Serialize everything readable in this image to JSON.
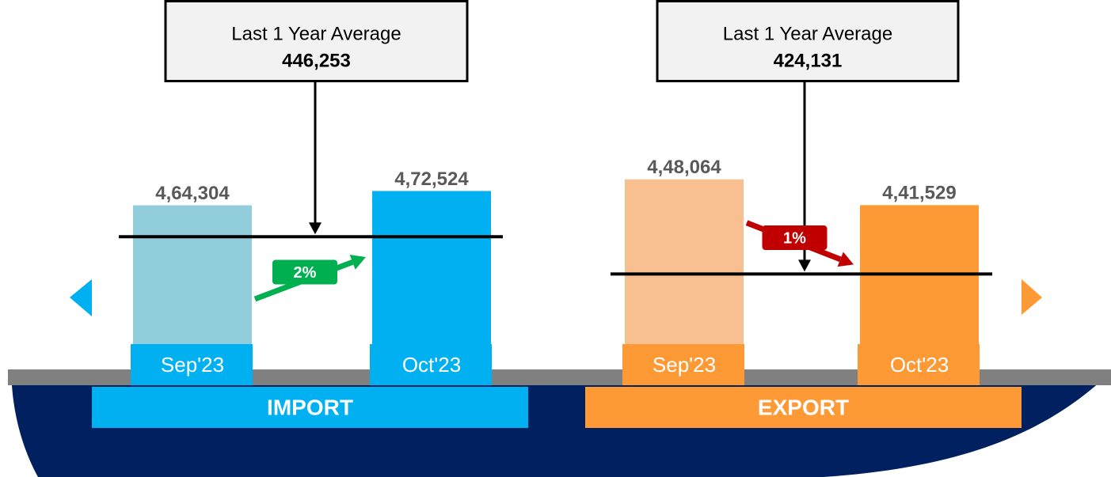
{
  "chart_data": [
    {
      "type": "bar",
      "title": "IMPORT",
      "color": "#00B0F0",
      "categories": [
        "Sep'23",
        "Oct'23"
      ],
      "values": [
        464304,
        472524
      ],
      "value_labels": [
        "4,64,304",
        "4,72,524"
      ],
      "colors": [
        "#92CDDC",
        "#00B0F0"
      ],
      "ylim": [
        370000,
        480000
      ],
      "average": {
        "label": "Last 1 Year Average",
        "value": 446253,
        "value_label": "446,253"
      },
      "change": 2,
      "change_label": "2%",
      "change_color": "#00B050"
    },
    {
      "type": "bar",
      "title": "EXPORT",
      "color": "#FD9A35",
      "categories": [
        "Sep'23",
        "Oct'23"
      ],
      "values": [
        448064,
        441529
      ],
      "value_labels": [
        "4,48,064",
        "4,41,529"
      ],
      "colors": [
        "#F8C090",
        "#FD9A35"
      ],
      "ylim": [
        400000,
        450000
      ],
      "average": {
        "label": "Last 1 Year Average",
        "value": 424131,
        "value_label": "424,131"
      },
      "change": 1,
      "change_label": "1%",
      "change_color": "#C00000"
    }
  ]
}
